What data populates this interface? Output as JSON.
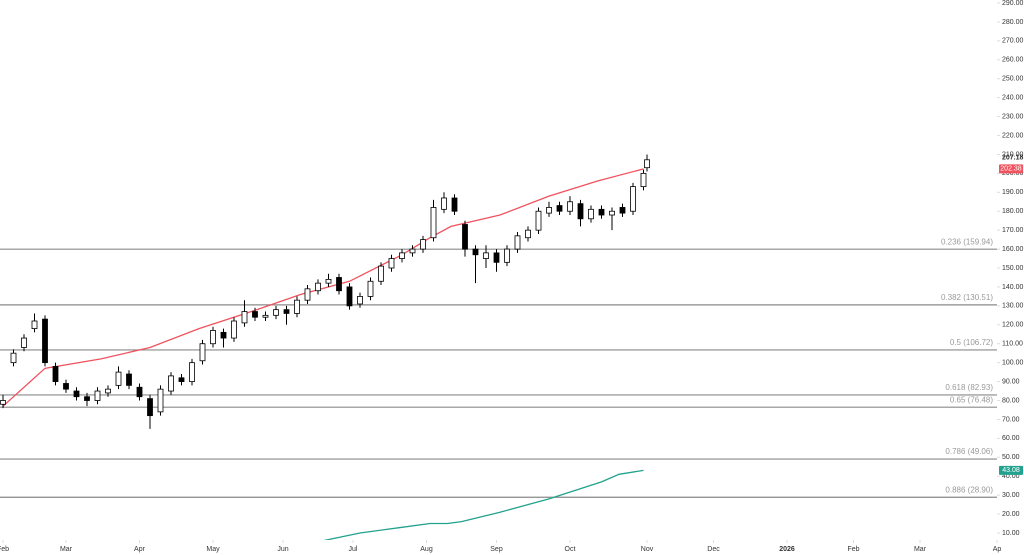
{
  "chart_data": {
    "type": "candlestick",
    "x": [
      0,
      3,
      6,
      9,
      12,
      15,
      18,
      21,
      24,
      27,
      30,
      33,
      36,
      39,
      42,
      45,
      48,
      51,
      54,
      57,
      60,
      63,
      66,
      69,
      72,
      75,
      78,
      81,
      84,
      87,
      90,
      93,
      96,
      99,
      102,
      105,
      108,
      111,
      114,
      117,
      120,
      123,
      126,
      129,
      132,
      135,
      138,
      141,
      144,
      147,
      150,
      153,
      156,
      159,
      162,
      165,
      168,
      171,
      174,
      177,
      180,
      183,
      184
    ],
    "open": [
      78,
      100,
      108,
      118,
      123,
      98,
      89,
      85,
      82,
      80,
      84,
      88,
      94,
      87,
      81,
      74,
      85,
      92,
      90,
      101,
      110,
      116,
      113,
      121,
      127,
      124,
      125,
      128,
      126,
      133,
      138,
      142,
      145,
      140,
      131,
      135,
      143,
      150,
      155,
      158,
      160,
      166,
      181,
      187,
      173,
      160,
      155,
      158,
      153,
      160,
      166,
      170,
      179,
      183,
      180,
      184,
      176,
      181,
      178,
      182,
      180,
      193,
      203
    ],
    "high": [
      83,
      107,
      115,
      126,
      125,
      100,
      91,
      87,
      84,
      87,
      88,
      98,
      96,
      89,
      83,
      88,
      95,
      94,
      102,
      112,
      119,
      118,
      124,
      133,
      129,
      127,
      130,
      130,
      135,
      141,
      144,
      147,
      147,
      142,
      137,
      145,
      153,
      157,
      160,
      162,
      167,
      186,
      190,
      189,
      175,
      162,
      162,
      160,
      162,
      169,
      172,
      182,
      185,
      185,
      188,
      186,
      183,
      183,
      182,
      184,
      195,
      202,
      210
    ],
    "low": [
      76,
      98,
      106,
      116,
      98,
      88,
      84,
      80,
      77,
      78,
      82,
      86,
      86,
      80,
      65,
      72,
      83,
      88,
      88,
      99,
      108,
      108,
      111,
      119,
      122,
      122,
      123,
      120,
      124,
      131,
      136,
      140,
      136,
      128,
      129,
      133,
      141,
      148,
      153,
      156,
      158,
      164,
      179,
      178,
      156,
      142,
      150,
      148,
      151,
      158,
      164,
      168,
      177,
      178,
      178,
      172,
      174,
      176,
      170,
      177,
      178,
      191,
      201
    ],
    "close": [
      80,
      105,
      113,
      122,
      100,
      90,
      86,
      82,
      80,
      85,
      86,
      95,
      88,
      82,
      72,
      86,
      93,
      90,
      100,
      110,
      117,
      113,
      122,
      127,
      124,
      125,
      128,
      126,
      133,
      139,
      142,
      144,
      138,
      130,
      135,
      143,
      151,
      155,
      158,
      160,
      165,
      182,
      187,
      180,
      160,
      157,
      158,
      153,
      160,
      167,
      170,
      180,
      182,
      180,
      185,
      176,
      181,
      178,
      180,
      179,
      193,
      200,
      207.18
    ],
    "up_color": "#ffffff",
    "down_color": "#000000",
    "lines": [
      {
        "color": "#f0525e",
        "x": [
          0,
          12,
          28,
          42,
          56,
          71,
          85,
          99,
          114,
          122,
          128,
          142,
          156,
          170,
          183
        ],
        "values": [
          77,
          97,
          102,
          108,
          118,
          127,
          136,
          143,
          157,
          166,
          172,
          178,
          188,
          196,
          202.38
        ]
      },
      {
        "color": "#22a28e",
        "x": [
          89,
          102,
          114,
          122,
          127,
          131,
          142,
          156,
          171,
          176,
          183
        ],
        "values": [
          5,
          10,
          13,
          15,
          15,
          16,
          21,
          28,
          37,
          41,
          43.08
        ]
      }
    ],
    "fib_levels": [
      {
        "value": 159.94,
        "label": "0.236 (159.94)"
      },
      {
        "value": 130.51,
        "label": "0.382 (130.51)"
      },
      {
        "value": 106.72,
        "label": "0.5 (106.72)"
      },
      {
        "value": 82.93,
        "label": "0.618 (82.93)"
      },
      {
        "value": 76.48,
        "label": "0.65 (76.48)"
      },
      {
        "value": 49.06,
        "label": "0.786 (49.06)"
      },
      {
        "value": 28.9,
        "label": "0.886 (28.90)"
      }
    ],
    "xlim": [
      0,
      284
    ],
    "xticks": [
      {
        "value": 0,
        "label": "Feb"
      },
      {
        "value": 18,
        "label": "Mar"
      },
      {
        "value": 39,
        "label": "Apr"
      },
      {
        "value": 60,
        "label": "May"
      },
      {
        "value": 80,
        "label": "Jun"
      },
      {
        "value": 100,
        "label": "Jul"
      },
      {
        "value": 121,
        "label": "Aug"
      },
      {
        "value": 141,
        "label": "Sep"
      },
      {
        "value": 162,
        "label": "Oct"
      },
      {
        "value": 184,
        "label": "Nov"
      },
      {
        "value": 203,
        "label": "Dec"
      },
      {
        "value": 224,
        "label": "2026"
      },
      {
        "value": 243,
        "label": "Feb"
      },
      {
        "value": 262,
        "label": "Mar"
      },
      {
        "value": 284,
        "label": "Ap"
      }
    ],
    "ylim": [
      6.3,
      291.6
    ],
    "yticks": [
      {
        "value": 10,
        "label": "10.00"
      },
      {
        "value": 20,
        "label": "20.00"
      },
      {
        "value": 30,
        "label": "30.00"
      },
      {
        "value": 40,
        "label": "40.00"
      },
      {
        "value": 50,
        "label": "50.00"
      },
      {
        "value": 60,
        "label": "60.00"
      },
      {
        "value": 70,
        "label": "70.00"
      },
      {
        "value": 80,
        "label": "80.00"
      },
      {
        "value": 90,
        "label": "90.00"
      },
      {
        "value": 100,
        "label": "100.00"
      },
      {
        "value": 110,
        "label": "110.00"
      },
      {
        "value": 120,
        "label": "120.00"
      },
      {
        "value": 130,
        "label": "130.00"
      },
      {
        "value": 140,
        "label": "140.00"
      },
      {
        "value": 150,
        "label": "150.00"
      },
      {
        "value": 160,
        "label": "160.00"
      },
      {
        "value": 170,
        "label": "170.00"
      },
      {
        "value": 180,
        "label": "180.00"
      },
      {
        "value": 190,
        "label": "190.00"
      },
      {
        "value": 200,
        "label": "200.00"
      },
      {
        "value": 210,
        "label": "210.00"
      },
      {
        "value": 220,
        "label": "220.00"
      },
      {
        "value": 230,
        "label": "230.00"
      },
      {
        "value": 240,
        "label": "240.00"
      },
      {
        "value": 250,
        "label": "250.00"
      },
      {
        "value": 260,
        "label": "260.00"
      },
      {
        "value": 270,
        "label": "270.00"
      },
      {
        "value": 280,
        "label": "280.00"
      },
      {
        "value": 290,
        "label": "290.00"
      }
    ],
    "grid": false
  }
}
